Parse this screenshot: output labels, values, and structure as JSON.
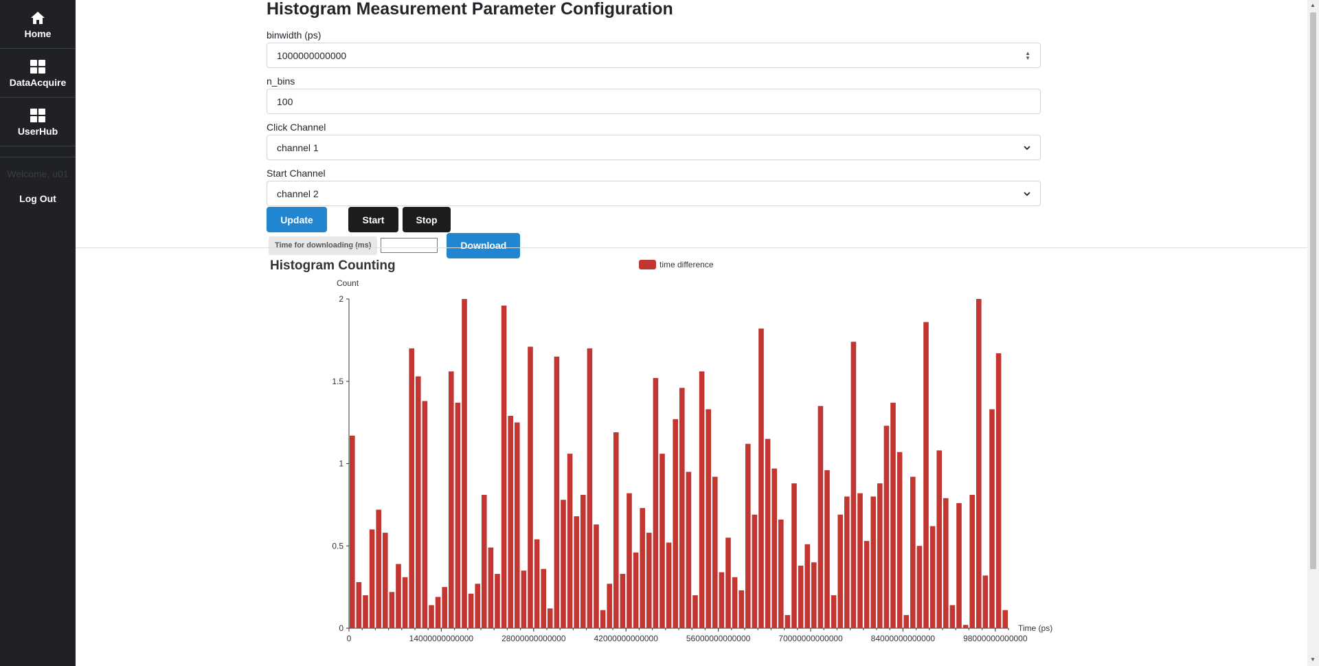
{
  "sidebar": {
    "items": [
      {
        "label": "Home",
        "icon": "home-icon"
      },
      {
        "label": "DataAcquire",
        "icon": "grid-icon"
      },
      {
        "label": "UserHub",
        "icon": "grid-icon"
      }
    ],
    "welcome": "Welcome, u01",
    "logout": "Log Out"
  },
  "config": {
    "title": "Histogram Measurement Parameter Configuration",
    "binwidth_label": "binwidth (ps)",
    "binwidth_value": "1000000000000",
    "n_bins_label": "n_bins",
    "n_bins_value": "100",
    "click_channel_label": "Click Channel",
    "click_channel_value": "channel 1",
    "start_channel_label": "Start Channel",
    "start_channel_value": "channel 2",
    "update_label": "Update",
    "start_label": "Start",
    "stop_label": "Stop",
    "download_time_label": "Time for downloading (ms)",
    "download_time_value": "",
    "download_label": "Download"
  },
  "chart_data": {
    "type": "bar",
    "title": "Histogram Counting",
    "series": [
      {
        "name": "time difference",
        "color": "#c23531"
      }
    ],
    "ylabel": "Count",
    "xlabel": "Time (ps)",
    "ylim": [
      0,
      2
    ],
    "yticks": [
      "0",
      "0.5",
      "1",
      "1.5",
      "2"
    ],
    "xticks": [
      "0",
      "14000000000000",
      "28000000000000",
      "42000000000000",
      "56000000000000",
      "70000000000000",
      "84000000000000",
      "98000000000000"
    ],
    "bin_width": 1000000000000,
    "values": [
      1.17,
      0.28,
      0.2,
      0.6,
      0.72,
      0.58,
      0.22,
      0.39,
      0.31,
      1.7,
      1.53,
      1.38,
      0.14,
      0.19,
      0.25,
      1.56,
      1.37,
      2.0,
      0.21,
      0.27,
      0.81,
      0.49,
      0.33,
      1.96,
      1.29,
      1.25,
      0.35,
      1.71,
      0.54,
      0.36,
      0.12,
      1.65,
      0.78,
      1.06,
      0.68,
      0.81,
      1.7,
      0.63,
      0.11,
      0.27,
      1.19,
      0.33,
      0.82,
      0.46,
      0.73,
      0.58,
      1.52,
      1.06,
      0.52,
      1.27,
      1.46,
      0.95,
      0.2,
      1.56,
      1.33,
      0.92,
      0.34,
      0.55,
      0.31,
      0.23,
      1.12,
      0.69,
      1.82,
      1.15,
      0.97,
      0.66,
      0.08,
      0.88,
      0.38,
      0.51,
      0.4,
      1.35,
      0.96,
      0.2,
      0.69,
      0.8,
      1.74,
      0.82,
      0.53,
      0.8,
      0.88,
      1.23,
      1.37,
      1.07,
      0.08,
      0.92,
      0.5,
      1.86,
      0.62,
      1.08,
      0.79,
      0.14,
      0.76,
      0.02,
      0.81,
      2.0,
      0.32,
      1.33,
      1.67,
      0.11
    ]
  }
}
